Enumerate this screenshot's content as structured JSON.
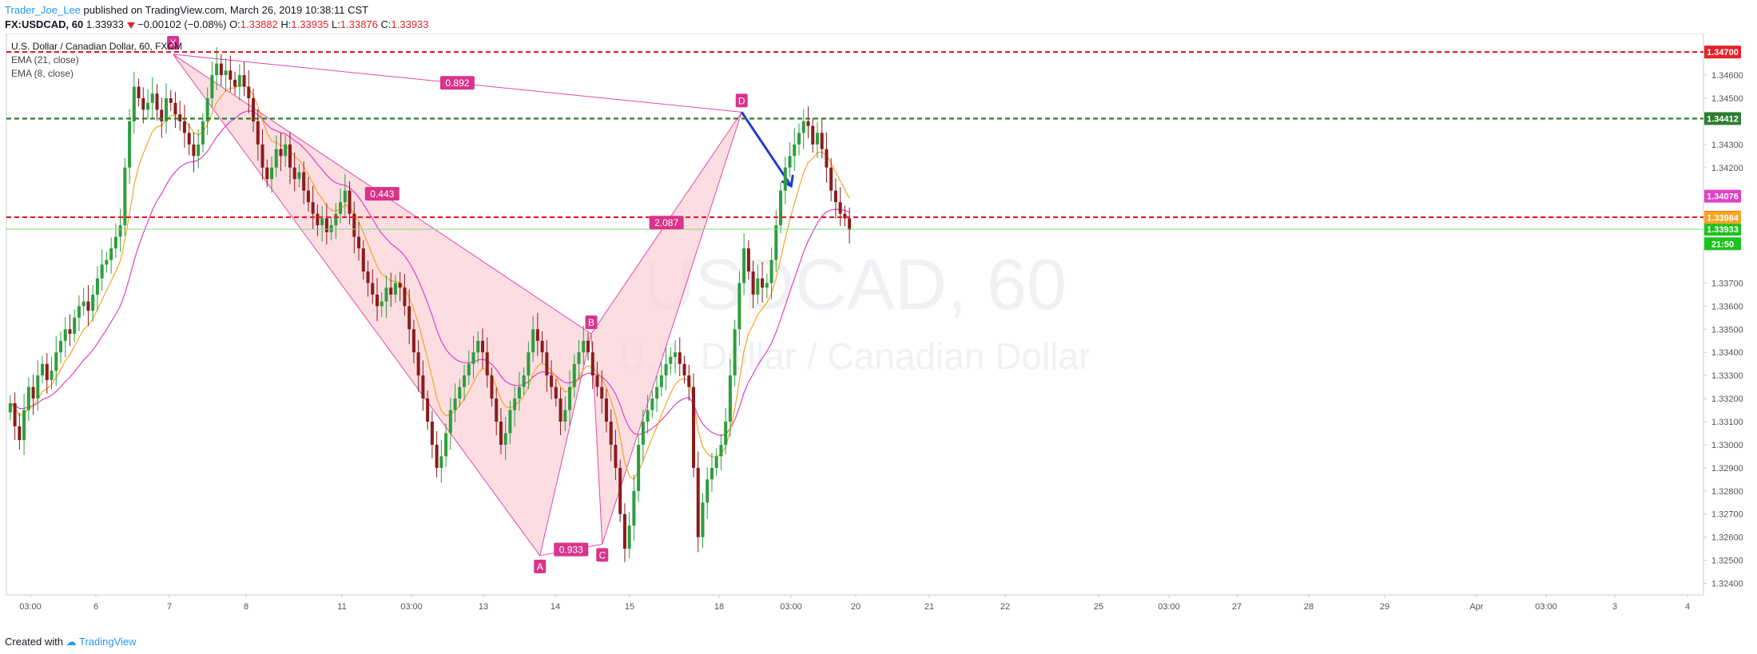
{
  "header": {
    "author": "Trader_Joe_Lee",
    "published_text": "published on TradingView.com, March 26, 2019 10:38:11 CST",
    "symbol": "FX:USDCAD, 60",
    "last": "1.33933",
    "change": "−0.00102 (−0.08%)",
    "o_label": "O:",
    "o_value": "1.33882",
    "h_label": "H:",
    "h_value": "1.33935",
    "l_label": "L:",
    "l_value": "1.33876",
    "c_label": "C:",
    "c_value": "1.33933"
  },
  "legend": {
    "title": "U.S. Dollar / Canadian Dollar, 60, FXCM",
    "ema21": "EMA (21, close)",
    "ema8": "EMA (8, close)"
  },
  "watermark": {
    "ticker": "USDCAD, 60",
    "name": "U.S. Dollar / Canadian Dollar"
  },
  "footer": {
    "created": "Created with",
    "brand": "TradingView"
  },
  "colors": {
    "up": "#26a69a",
    "down": "#8b1a1a",
    "up_candle": "#2e9e3e",
    "down_candle": "#8b1c1c",
    "pattern": "#e24aa8",
    "pattern_fill": "#f9d2d8",
    "ema21": "#e040c8",
    "ema8": "#f5a623",
    "red_line": "#e5222a",
    "green_line": "#2e7d32",
    "arrow": "#1f3dd1"
  },
  "chart_data": {
    "type": "candlestick",
    "title": "U.S. Dollar / Canadian Dollar, 60, FXCM",
    "x_ticks": [
      "03:00",
      "6",
      "7",
      "8",
      "11",
      "03:00",
      "13",
      "14",
      "15",
      "18",
      "03:00",
      "20",
      "21",
      "22",
      "25",
      "03:00",
      "27",
      "28",
      "29",
      "Apr",
      "03:00",
      "3",
      "4"
    ],
    "y_ticks": [
      "1.34600",
      "1.34500",
      "1.34300",
      "1.34200",
      "1.33700",
      "1.33600",
      "1.33500",
      "1.33400",
      "1.33300",
      "1.33200",
      "1.33100",
      "1.33000",
      "1.32900",
      "1.32800",
      "1.32700",
      "1.32600",
      "1.32500",
      "1.32400"
    ],
    "ylim": [
      1.3235,
      1.3478
    ],
    "horizontal_lines": [
      {
        "value": 1.347,
        "label": "1.34700",
        "style": "red-dashed"
      },
      {
        "value": 1.34412,
        "label": "1.34412",
        "style": "green-dashed"
      },
      {
        "value": 1.33985,
        "label": "1.33985",
        "style": "red-dashed"
      },
      {
        "value": 1.33933,
        "label": "1.33933",
        "style": "green-solid"
      }
    ],
    "price_labels": [
      {
        "value": 1.34076,
        "label": "1.34076",
        "color": "#e040c8"
      },
      {
        "value": 1.33984,
        "label": "1.33984",
        "color": "#f5a623"
      },
      {
        "value": 1.3387,
        "label": "21:50",
        "color": "#1ec21e"
      }
    ],
    "pattern_points": [
      {
        "name": "X",
        "x_index": 90,
        "price": 1.3469
      },
      {
        "name": "A",
        "x_index": 290,
        "price": 1.3252
      },
      {
        "name": "B",
        "x_index": 318,
        "price": 1.3348
      },
      {
        "name": "C",
        "x_index": 324,
        "price": 1.3257
      },
      {
        "name": "D",
        "x_index": 400,
        "price": 1.3444
      }
    ],
    "ratios": [
      {
        "value": "0.892",
        "between": "XD"
      },
      {
        "value": "0.443",
        "between": "XB"
      },
      {
        "value": "2.087",
        "between": "BD"
      },
      {
        "value": "0.933",
        "between": "AC"
      }
    ],
    "projection": {
      "from_price": 1.3444,
      "to_price": 1.3412
    },
    "closes": [
      1.3318,
      1.3308,
      1.3302,
      1.3315,
      1.3325,
      1.332,
      1.333,
      1.3335,
      1.3328,
      1.3332,
      1.334,
      1.3345,
      1.335,
      1.3348,
      1.3355,
      1.336,
      1.3362,
      1.3358,
      1.3365,
      1.3372,
      1.3378,
      1.338,
      1.3385,
      1.339,
      1.3395,
      1.342,
      1.344,
      1.3455,
      1.345,
      1.3445,
      1.3448,
      1.3452,
      1.3445,
      1.344,
      1.345,
      1.3448,
      1.3443,
      1.344,
      1.3435,
      1.343,
      1.3425,
      1.343,
      1.344,
      1.345,
      1.346,
      1.3465,
      1.346,
      1.3462,
      1.3458,
      1.3455,
      1.346,
      1.3455,
      1.345,
      1.344,
      1.343,
      1.342,
      1.3415,
      1.342,
      1.3428,
      1.3425,
      1.343,
      1.342,
      1.3415,
      1.3418,
      1.341,
      1.3405,
      1.34,
      1.3395,
      1.3398,
      1.3392,
      1.3395,
      1.34,
      1.3405,
      1.341,
      1.34,
      1.339,
      1.3385,
      1.3375,
      1.337,
      1.3365,
      1.336,
      1.3362,
      1.3368,
      1.3365,
      1.337,
      1.3368,
      1.336,
      1.335,
      1.334,
      1.333,
      1.332,
      1.331,
      1.33,
      1.329,
      1.3295,
      1.3305,
      1.3315,
      1.332,
      1.3325,
      1.333,
      1.3335,
      1.334,
      1.3345,
      1.334,
      1.333,
      1.332,
      1.331,
      1.33,
      1.3305,
      1.3315,
      1.332,
      1.3325,
      1.333,
      1.334,
      1.335,
      1.3345,
      1.334,
      1.333,
      1.3325,
      1.332,
      1.331,
      1.3315,
      1.3325,
      1.3335,
      1.334,
      1.3345,
      1.334,
      1.333,
      1.3325,
      1.332,
      1.331,
      1.33,
      1.329,
      1.327,
      1.3255,
      1.3265,
      1.328,
      1.33,
      1.331,
      1.3315,
      1.332,
      1.3325,
      1.333,
      1.3335,
      1.3338,
      1.334,
      1.3335,
      1.333,
      1.3325,
      1.329,
      1.326,
      1.3275,
      1.3285,
      1.329,
      1.3295,
      1.33,
      1.331,
      1.333,
      1.335,
      1.337,
      1.3385,
      1.3375,
      1.3365,
      1.3372,
      1.3368,
      1.337,
      1.338,
      1.3395,
      1.341,
      1.342,
      1.3425,
      1.343,
      1.3435,
      1.344,
      1.3438,
      1.343,
      1.3435,
      1.3428,
      1.342,
      1.341,
      1.3405,
      1.34,
      1.3398,
      1.3393
    ]
  }
}
